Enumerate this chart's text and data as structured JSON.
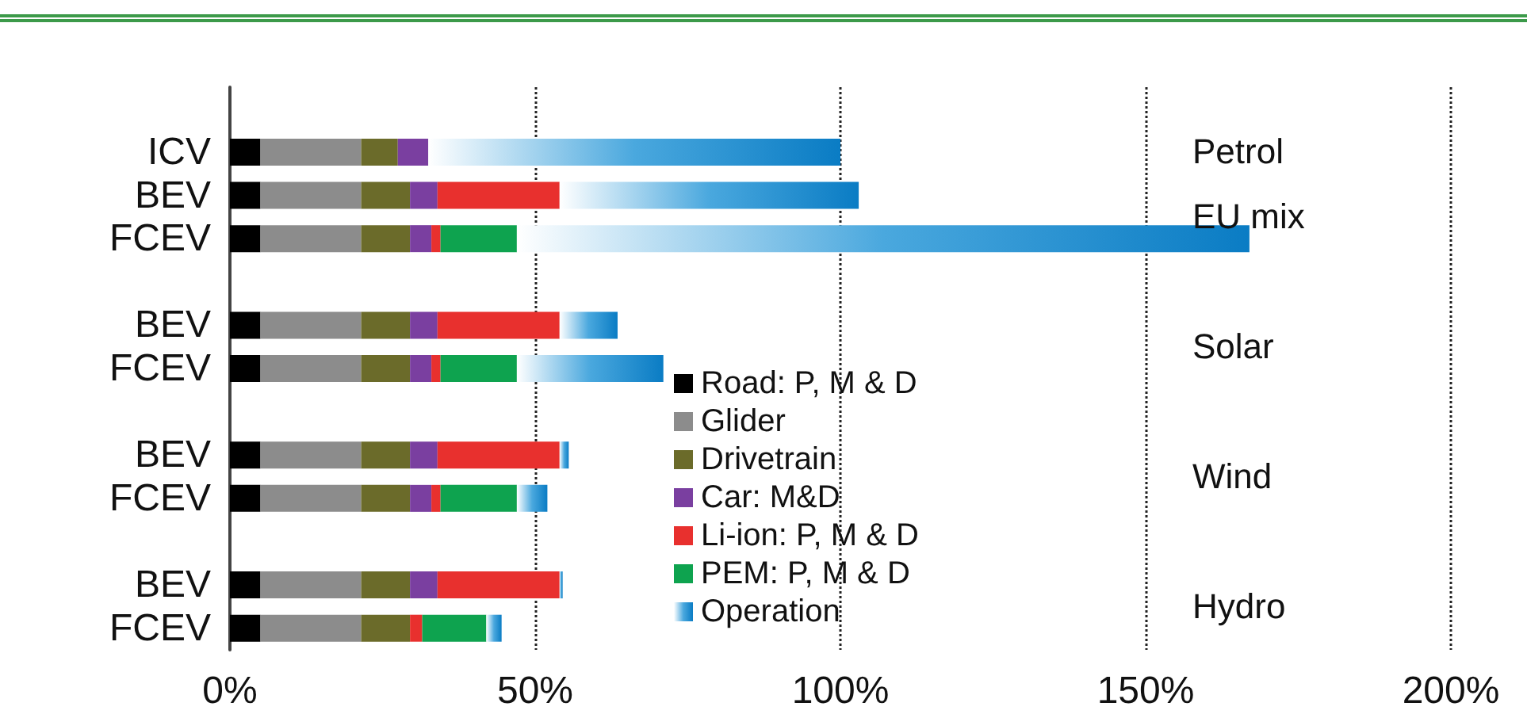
{
  "chart_data": {
    "type": "bar",
    "orientation": "horizontal",
    "stacked": true,
    "categories": [
      null,
      "ICV",
      "BEV",
      "FCEV",
      null,
      "BEV",
      "FCEV",
      null,
      "BEV",
      "FCEV",
      null,
      "BEV",
      "FCEV"
    ],
    "series": [
      {
        "name": "Road: P, M & D",
        "color": "#000000",
        "values": [
          null,
          5,
          5,
          5,
          null,
          5,
          5,
          null,
          5,
          5,
          null,
          5,
          5
        ]
      },
      {
        "name": "Glider",
        "color": "#8c8c8c",
        "values": [
          null,
          16.5,
          16.5,
          16.5,
          null,
          16.5,
          16.5,
          null,
          16.5,
          16.5,
          null,
          16.5,
          16.5
        ]
      },
      {
        "name": "Drivetrain",
        "color": "#6b6b2a",
        "values": [
          null,
          6,
          8,
          8,
          null,
          8,
          8,
          null,
          8,
          8,
          null,
          8,
          8
        ]
      },
      {
        "name": "Car: M&D",
        "color": "#7a3fa0",
        "values": [
          null,
          5,
          4.5,
          3.5,
          null,
          4.5,
          3.5,
          null,
          4.5,
          3.5,
          null,
          4.5,
          null
        ]
      },
      {
        "name": "Li-ion: P, M & D",
        "color": "#e8302e",
        "values": [
          null,
          null,
          20,
          1.5,
          null,
          20,
          1.5,
          null,
          20,
          1.5,
          null,
          20,
          2
        ]
      },
      {
        "name": "PEM: P, M & D",
        "color": "#0ea34f",
        "values": [
          null,
          null,
          null,
          12.5,
          null,
          null,
          12.5,
          null,
          null,
          12.5,
          null,
          null,
          10.5
        ]
      },
      {
        "name": "Operation",
        "color": "#0a7cc4",
        "values": [
          null,
          67.5,
          49,
          120,
          null,
          9.5,
          24,
          null,
          1.5,
          5,
          null,
          0.5,
          2.5
        ]
      }
    ],
    "xlim": [
      0,
      200
    ],
    "xticks": [
      {
        "value": 0,
        "label": "0%"
      },
      {
        "value": 50,
        "label": "50%"
      },
      {
        "value": 100,
        "label": "100%"
      },
      {
        "value": 150,
        "label": "150%"
      },
      {
        "value": 200,
        "label": "200%"
      }
    ],
    "grid": "x",
    "line_style": "dotted",
    "legend": "bottom",
    "annotations": [
      "Petrol",
      "EU mix",
      "Solar",
      "Wind",
      "Hydro"
    ]
  }
}
